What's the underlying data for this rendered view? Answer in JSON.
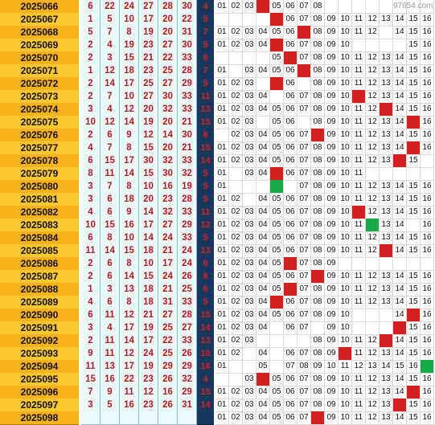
{
  "watermark": "97654.com",
  "rows": [
    {
      "period": "2025066",
      "reds": [
        "6",
        "22",
        "24",
        "27",
        "28",
        "30"
      ],
      "blue": "4",
      "cells": [
        "01",
        "02",
        "03",
        "04",
        "05",
        "06",
        "07",
        "08",
        "",
        "",
        "",
        "",
        "",
        "",
        "",
        ""
      ],
      "hl": {
        "4": "red"
      }
    },
    {
      "period": "2025067",
      "reds": [
        "1",
        "5",
        "10",
        "17",
        "20",
        "22"
      ],
      "blue": "5",
      "cells": [
        "",
        "",
        "",
        "",
        "",
        "06",
        "07",
        "08",
        "09",
        "10",
        "11",
        "12",
        "13",
        "14",
        "15",
        "16"
      ],
      "hl": {
        "5": "red"
      }
    },
    {
      "period": "2025068",
      "reds": [
        "5",
        "7",
        "8",
        "19",
        "20",
        "31"
      ],
      "blue": "7",
      "cells": [
        "01",
        "02",
        "03",
        "04",
        "05",
        "06",
        "07",
        "08",
        "09",
        "10",
        "11",
        "12",
        "",
        "14",
        "15",
        "16"
      ],
      "hl": {
        "7": "red"
      }
    },
    {
      "period": "2025069",
      "reds": [
        "2",
        "4",
        "19",
        "23",
        "27",
        "30"
      ],
      "blue": "5",
      "cells": [
        "01",
        "02",
        "03",
        "04",
        "05",
        "06",
        "07",
        "08",
        "09",
        "10",
        "",
        "",
        "",
        "",
        "15",
        "16"
      ],
      "hl": {
        "5": "red"
      }
    },
    {
      "period": "2025070",
      "reds": [
        "2",
        "3",
        "15",
        "21",
        "22",
        "33"
      ],
      "blue": "6",
      "cells": [
        "",
        "",
        "",
        "",
        "05",
        "06",
        "07",
        "08",
        "09",
        "10",
        "11",
        "12",
        "13",
        "14",
        "15",
        "16"
      ],
      "hl": {
        "6": "red"
      }
    },
    {
      "period": "2025071",
      "reds": [
        "1",
        "12",
        "18",
        "23",
        "25",
        "28"
      ],
      "blue": "7",
      "cells": [
        "01",
        "",
        "03",
        "04",
        "05",
        "06",
        "07",
        "08",
        "09",
        "10",
        "11",
        "12",
        "13",
        "14",
        "15",
        "16"
      ],
      "hl": {
        "7": "red"
      }
    },
    {
      "period": "2025072",
      "reds": [
        "2",
        "14",
        "17",
        "25",
        "27",
        "29"
      ],
      "blue": "5",
      "cells": [
        "01",
        "02",
        "03",
        "",
        "05",
        "06",
        "",
        "08",
        "09",
        "10",
        "11",
        "12",
        "13",
        "14",
        "15",
        "16"
      ],
      "hl": {
        "5": "red"
      }
    },
    {
      "period": "2025073",
      "reds": [
        "2",
        "7",
        "10",
        "27",
        "30",
        "33"
      ],
      "blue": "11",
      "cells": [
        "01",
        "02",
        "03",
        "04",
        "",
        "06",
        "07",
        "08",
        "09",
        "10",
        "11",
        "12",
        "13",
        "14",
        "15",
        "16"
      ],
      "hl": {
        "11": "red"
      }
    },
    {
      "period": "2025074",
      "reds": [
        "3",
        "4",
        "12",
        "20",
        "32",
        "33"
      ],
      "blue": "13",
      "cells": [
        "01",
        "02",
        "03",
        "04",
        "05",
        "06",
        "07",
        "08",
        "09",
        "10",
        "11",
        "12",
        "13",
        "14",
        "15",
        "16"
      ],
      "hl": {
        "13": "red"
      }
    },
    {
      "period": "2025075",
      "reds": [
        "10",
        "12",
        "14",
        "19",
        "20",
        "21"
      ],
      "blue": "15",
      "cells": [
        "01",
        "02",
        "03",
        "",
        "05",
        "06",
        "",
        "08",
        "09",
        "10",
        "11",
        "12",
        "13",
        "14",
        "15",
        "16"
      ],
      "hl": {
        "15": "red"
      }
    },
    {
      "period": "2025076",
      "reds": [
        "2",
        "6",
        "9",
        "12",
        "14",
        "30"
      ],
      "blue": "8",
      "cells": [
        "",
        "02",
        "03",
        "04",
        "05",
        "06",
        "07",
        "08",
        "09",
        "10",
        "11",
        "12",
        "13",
        "14",
        "15",
        "16"
      ],
      "hl": {
        "8": "red"
      }
    },
    {
      "period": "2025077",
      "reds": [
        "4",
        "7",
        "8",
        "15",
        "20",
        "21"
      ],
      "blue": "15",
      "cells": [
        "01",
        "02",
        "03",
        "04",
        "05",
        "06",
        "07",
        "08",
        "09",
        "10",
        "11",
        "12",
        "13",
        "14",
        "15",
        "16"
      ],
      "hl": {
        "15": "red"
      }
    },
    {
      "period": "2025078",
      "reds": [
        "6",
        "15",
        "17",
        "30",
        "32",
        "33"
      ],
      "blue": "14",
      "cells": [
        "01",
        "02",
        "03",
        "04",
        "05",
        "06",
        "07",
        "08",
        "09",
        "10",
        "11",
        "12",
        "13",
        "14",
        "15",
        ""
      ],
      "hl": {
        "14": "red"
      }
    },
    {
      "period": "2025079",
      "reds": [
        "8",
        "11",
        "14",
        "15",
        "30",
        "32"
      ],
      "blue": "5",
      "cells": [
        "01",
        "",
        "03",
        "04",
        "05",
        "06",
        "07",
        "08",
        "09",
        "10",
        "11",
        "",
        "",
        "",
        "",
        ""
      ],
      "hl": {
        "5": "red"
      }
    },
    {
      "period": "2025080",
      "reds": [
        "3",
        "7",
        "8",
        "10",
        "16",
        "19"
      ],
      "blue": "5",
      "cells": [
        "01",
        "",
        "",
        "",
        "",
        "",
        "07",
        "08",
        "09",
        "10",
        "11",
        "12",
        "13",
        "14",
        "15",
        "16"
      ],
      "hl": {
        "5": "green"
      }
    },
    {
      "period": "2025081",
      "reds": [
        "3",
        "6",
        "18",
        "20",
        "23",
        "28"
      ],
      "blue": "5",
      "cells": [
        "01",
        "02",
        "",
        "04",
        "05",
        "06",
        "07",
        "08",
        "09",
        "10",
        "11",
        "12",
        "13",
        "14",
        "15",
        "16"
      ],
      "hl": {}
    },
    {
      "period": "2025082",
      "reds": [
        "4",
        "6",
        "9",
        "14",
        "32",
        "33"
      ],
      "blue": "11",
      "cells": [
        "01",
        "02",
        "03",
        "04",
        "05",
        "06",
        "07",
        "08",
        "09",
        "10",
        "11",
        "12",
        "13",
        "14",
        "15",
        "16"
      ],
      "hl": {
        "11": "red"
      }
    },
    {
      "period": "2025083",
      "reds": [
        "10",
        "15",
        "16",
        "17",
        "27",
        "29"
      ],
      "blue": "12",
      "cells": [
        "01",
        "02",
        "03",
        "04",
        "05",
        "06",
        "07",
        "08",
        "09",
        "10",
        "11",
        "12",
        "13",
        "14",
        "",
        "16"
      ],
      "hl": {
        "12": "green"
      }
    },
    {
      "period": "2025084",
      "reds": [
        "6",
        "8",
        "10",
        "14",
        "24",
        "33"
      ],
      "blue": "5",
      "cells": [
        "01",
        "02",
        "03",
        "04",
        "05",
        "06",
        "07",
        "08",
        "09",
        "10",
        "11",
        "12",
        "13",
        "14",
        "15",
        "16"
      ],
      "hl": {}
    },
    {
      "period": "2025085",
      "reds": [
        "11",
        "14",
        "15",
        "18",
        "21",
        "24"
      ],
      "blue": "13",
      "cells": [
        "01",
        "02",
        "03",
        "04",
        "05",
        "06",
        "07",
        "08",
        "09",
        "10",
        "11",
        "12",
        "13",
        "14",
        "15",
        "16"
      ],
      "hl": {
        "13": "red"
      }
    },
    {
      "period": "2025086",
      "reds": [
        "2",
        "6",
        "8",
        "10",
        "17",
        "24"
      ],
      "blue": "6",
      "cells": [
        "01",
        "02",
        "03",
        "04",
        "05",
        "06",
        "07",
        "08",
        "09",
        "",
        "",
        "",
        "",
        "",
        "",
        ""
      ],
      "hl": {
        "6": "red"
      }
    },
    {
      "period": "2025087",
      "reds": [
        "2",
        "6",
        "14",
        "15",
        "24",
        "26"
      ],
      "blue": "8",
      "cells": [
        "01",
        "02",
        "03",
        "04",
        "05",
        "06",
        "07",
        "08",
        "09",
        "10",
        "11",
        "12",
        "13",
        "14",
        "15",
        "16"
      ],
      "hl": {
        "8": "red"
      }
    },
    {
      "period": "2025088",
      "reds": [
        "1",
        "3",
        "13",
        "18",
        "21",
        "25"
      ],
      "blue": "6",
      "cells": [
        "01",
        "02",
        "03",
        "04",
        "05",
        "06",
        "07",
        "08",
        "09",
        "10",
        "11",
        "12",
        "13",
        "14",
        "15",
        "16"
      ],
      "hl": {
        "6": "red"
      }
    },
    {
      "period": "2025089",
      "reds": [
        "4",
        "6",
        "8",
        "18",
        "31",
        "33"
      ],
      "blue": "5",
      "cells": [
        "01",
        "02",
        "03",
        "04",
        "05",
        "06",
        "07",
        "08",
        "09",
        "10",
        "11",
        "12",
        "13",
        "14",
        "15",
        "16"
      ],
      "hl": {
        "5": "red"
      }
    },
    {
      "period": "2025090",
      "reds": [
        "6",
        "11",
        "12",
        "21",
        "27",
        "28"
      ],
      "blue": "15",
      "cells": [
        "01",
        "02",
        "03",
        "04",
        "05",
        "06",
        "07",
        "08",
        "09",
        "10",
        "",
        "",
        "",
        "14",
        "15",
        "16"
      ],
      "hl": {
        "15": "red"
      }
    },
    {
      "period": "2025091",
      "reds": [
        "3",
        "4",
        "17",
        "19",
        "25",
        "27"
      ],
      "blue": "14",
      "cells": [
        "01",
        "02",
        "03",
        "04",
        "",
        "06",
        "07",
        "",
        "09",
        "10",
        "",
        "",
        "",
        "14",
        "15",
        "16"
      ],
      "hl": {
        "14": "red"
      }
    },
    {
      "period": "2025092",
      "reds": [
        "2",
        "11",
        "14",
        "17",
        "22",
        "33"
      ],
      "blue": "13",
      "cells": [
        "01",
        "02",
        "03",
        "",
        "",
        "",
        "",
        "08",
        "09",
        "10",
        "11",
        "12",
        "13",
        "14",
        "15",
        "16"
      ],
      "hl": {
        "13": "red"
      }
    },
    {
      "period": "2025093",
      "reds": [
        "9",
        "11",
        "12",
        "24",
        "25",
        "26"
      ],
      "blue": "10",
      "cells": [
        "01",
        "02",
        "",
        "04",
        "",
        "06",
        "07",
        "08",
        "09",
        "10",
        "11",
        "12",
        "13",
        "14",
        "15",
        "16"
      ],
      "hl": {
        "10": "red"
      }
    },
    {
      "period": "2025094",
      "reds": [
        "11",
        "13",
        "17",
        "19",
        "29",
        "29"
      ],
      "blue": "16",
      "cells": [
        "01",
        "",
        "",
        "05",
        "",
        "07",
        "08",
        "09",
        "10",
        "11",
        "12",
        "13",
        "14",
        "15",
        "16",
        ""
      ],
      "hl": {
        "16": "green"
      }
    },
    {
      "period": "2025095",
      "reds": [
        "15",
        "16",
        "22",
        "23",
        "26",
        "32"
      ],
      "blue": "4",
      "cells": [
        "",
        "",
        "03",
        "04",
        "05",
        "06",
        "07",
        "08",
        "09",
        "10",
        "11",
        "12",
        "13",
        "14",
        "15",
        "16"
      ],
      "hl": {
        "4": "red"
      }
    },
    {
      "period": "2025096",
      "reds": [
        "7",
        "9",
        "11",
        "12",
        "16",
        "29"
      ],
      "blue": "15",
      "cells": [
        "01",
        "02",
        "03",
        "04",
        "05",
        "06",
        "07",
        "08",
        "09",
        "10",
        "11",
        "12",
        "13",
        "14",
        "15",
        "16"
      ],
      "hl": {
        "15": "red"
      }
    },
    {
      "period": "2025097",
      "reds": [
        "3",
        "5",
        "16",
        "23",
        "26",
        "31"
      ],
      "blue": "14",
      "cells": [
        "01",
        "02",
        "03",
        "04",
        "05",
        "06",
        "07",
        "08",
        "09",
        "10",
        "11",
        "12",
        "13",
        "14",
        "15",
        "16"
      ],
      "hl": {
        "14": "red"
      }
    },
    {
      "period": "2025098",
      "reds": [
        "",
        "",
        "",
        "",
        "",
        ""
      ],
      "blue": "",
      "cells": [
        "01",
        "02",
        "03",
        "04",
        "05",
        "06",
        "07",
        "08",
        "09",
        "10",
        "11",
        "12",
        "13",
        "14",
        "15",
        "16"
      ],
      "hl": {
        "8": "red"
      }
    }
  ]
}
